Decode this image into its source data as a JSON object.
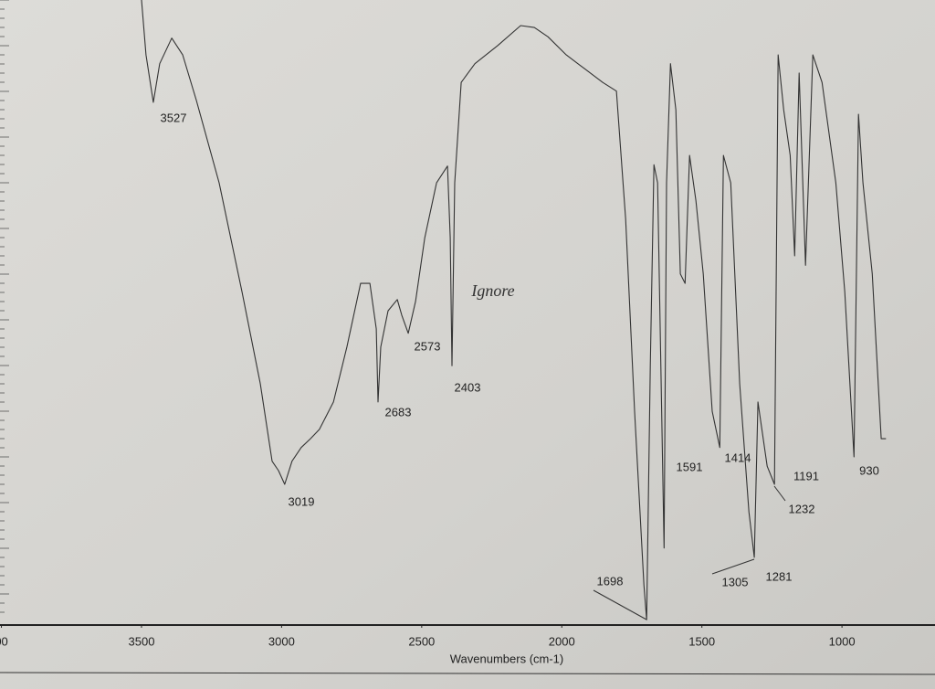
{
  "chart_data": {
    "type": "line",
    "xlabel": "Wavenumbers (cm-1)",
    "xlim": [
      4005,
      668
    ],
    "ylim": [
      0,
      100
    ],
    "xticks": [
      {
        "value": 4000,
        "label": "00"
      },
      3500,
      3000,
      2500,
      2000,
      1500,
      1000
    ],
    "color": "#333333",
    "x": [
      3500,
      3484,
      3458,
      3435,
      3392,
      3353,
      3304,
      3223,
      3141,
      3076,
      3034,
      3011,
      2989,
      2963,
      2930,
      2897,
      2865,
      2815,
      2767,
      2718,
      2685,
      2662,
      2656,
      2646,
      2620,
      2587,
      2571,
      2548,
      2522,
      2489,
      2447,
      2408,
      2398,
      2392,
      2382,
      2359,
      2310,
      2229,
      2147,
      2098,
      2049,
      1984,
      1919,
      1854,
      1805,
      1772,
      1740,
      1707,
      1697,
      1684,
      1671,
      1658,
      1635,
      1626,
      1612,
      1593,
      1577,
      1560,
      1544,
      1521,
      1495,
      1463,
      1436,
      1423,
      1397,
      1365,
      1332,
      1313,
      1300,
      1267,
      1241,
      1228,
      1208,
      1185,
      1169,
      1153,
      1130,
      1104,
      1071,
      1022,
      990,
      957,
      941,
      925,
      892,
      860,
      843
    ],
    "values": [
      100,
      91.2,
      83.6,
      89.8,
      93.9,
      91.2,
      83.9,
      70.7,
      53.2,
      38.5,
      26.1,
      24.6,
      22.4,
      26.1,
      28.3,
      29.7,
      31.2,
      35.6,
      44.4,
      54.6,
      54.6,
      47.3,
      35.6,
      44.4,
      50.2,
      52.0,
      49.5,
      46.6,
      51.7,
      61.9,
      70.7,
      73.4,
      61.9,
      41.4,
      70.7,
      86.8,
      89.8,
      92.7,
      95.9,
      95.6,
      94.1,
      91.2,
      89.0,
      86.8,
      85.4,
      64.9,
      34.1,
      6.3,
      0.7,
      41.4,
      73.6,
      70.7,
      12.2,
      70.7,
      89.8,
      82.4,
      56.1,
      54.6,
      75.1,
      67.8,
      56.1,
      34.1,
      28.3,
      75.1,
      70.7,
      38.5,
      18.0,
      10.7,
      35.6,
      25.3,
      22.4,
      91.2,
      82.4,
      75.1,
      59.0,
      88.3,
      57.5,
      91.2,
      86.8,
      70.7,
      53.2,
      26.8,
      81.7,
      70.7,
      56.1,
      29.7,
      29.7
    ],
    "annotations": [
      "3527",
      "3019",
      "2683",
      "2573",
      "2403",
      "Ignore",
      "1698",
      "1591",
      "1414",
      "1305",
      "1281",
      "1232",
      "1191",
      "930"
    ]
  }
}
